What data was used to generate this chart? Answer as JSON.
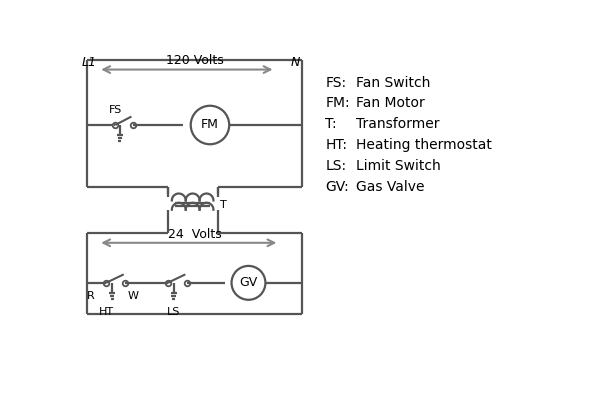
{
  "bg_color": "#ffffff",
  "line_color": "#555555",
  "arrow_color": "#888888",
  "text_color": "#000000",
  "legend": [
    [
      "FS:",
      "Fan Switch"
    ],
    [
      "FM:",
      "Fan Motor"
    ],
    [
      "T:",
      "Transformer"
    ],
    [
      "HT:",
      "Heating thermostat"
    ],
    [
      "LS:",
      "Limit Switch"
    ],
    [
      "GV:",
      "Gas Valve"
    ]
  ],
  "L1_label": "L1",
  "N_label": "N",
  "volts_120": "120 Volts",
  "volts_24": "24  Volts",
  "T_label": "T",
  "R_label": "R",
  "W_label": "W",
  "HT_label": "HT",
  "LS_label": "LS",
  "FS_label": "FS",
  "FM_label": "FM",
  "GV_label": "GV"
}
